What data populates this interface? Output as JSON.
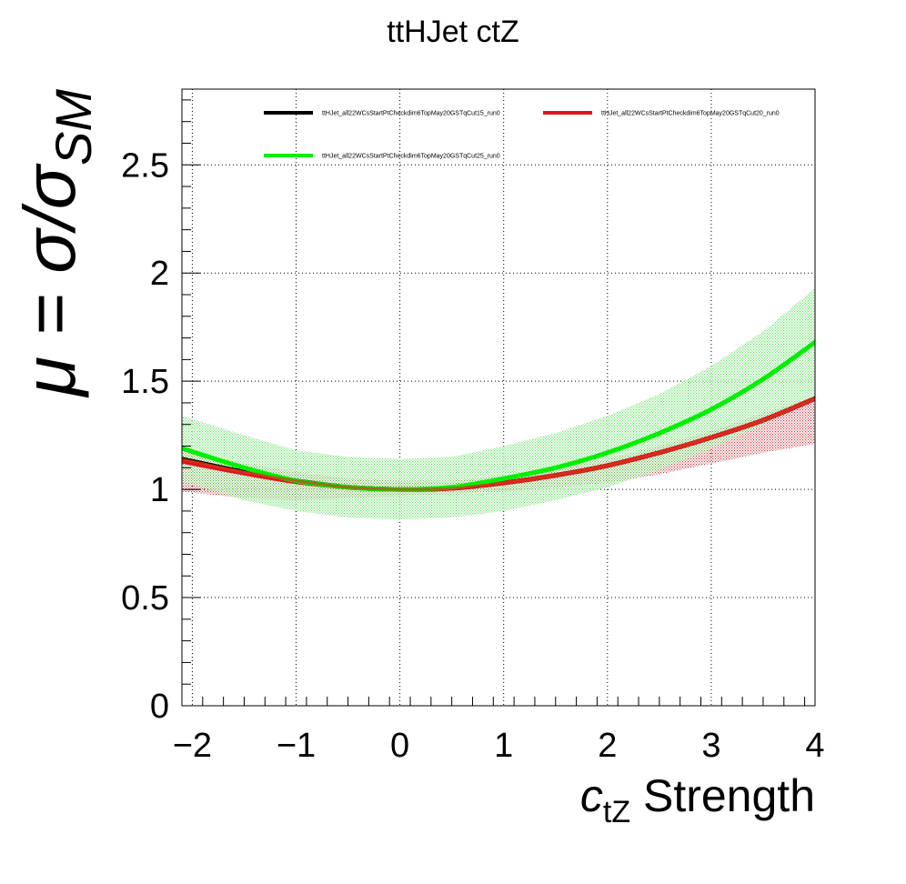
{
  "chart_data": {
    "type": "line",
    "title": "ttHJet ctZ",
    "xlabel": {
      "main": "c",
      "sub": "tZ",
      "suffix": " Strength"
    },
    "ylabel": {
      "prefix": "μ = σ/σ",
      "sub": "SM"
    },
    "xlim": [
      -2.1,
      4.0
    ],
    "ylim": [
      0,
      2.85
    ],
    "xticks": [
      -2,
      -1,
      0,
      1,
      2,
      3,
      4
    ],
    "xtick_labels": [
      "−2",
      "−1",
      "0",
      "1",
      "2",
      "3",
      "4"
    ],
    "yticks": [
      0,
      0.5,
      1,
      1.5,
      2,
      2.5
    ],
    "ytick_labels": [
      "0",
      "0.5",
      "1",
      "1.5",
      "2",
      "2.5"
    ],
    "grid": true,
    "legend_position": "top",
    "series": [
      {
        "name": "ttHJet_all22WCsStartPtCheckdim6TopMay20GSTqCut15_run0",
        "color": "#000000",
        "x": [
          -2.1,
          -1.5,
          -1,
          -0.5,
          0,
          0.5,
          1,
          1.5,
          2,
          2.5,
          3,
          3.5,
          4
        ],
        "y": [
          1.14,
          1.08,
          1.04,
          1.01,
          1.0,
          1.005,
          1.03,
          1.065,
          1.11,
          1.17,
          1.24,
          1.32,
          1.42
        ],
        "band_low": null,
        "band_high": null
      },
      {
        "name": "ttHJet_all22WCsStartPtCheckdim6TopMay20GSTqCut20_run0",
        "color": "#e0141e",
        "x": [
          -2.1,
          -1.5,
          -1,
          -0.5,
          0,
          0.5,
          1,
          1.5,
          2,
          2.5,
          3,
          3.5,
          4
        ],
        "y": [
          1.13,
          1.075,
          1.035,
          1.01,
          1.0,
          1.005,
          1.03,
          1.065,
          1.11,
          1.17,
          1.24,
          1.32,
          1.42
        ],
        "band_low": [
          0.99,
          0.96,
          0.95,
          0.96,
          0.97,
          0.98,
          0.99,
          1.01,
          1.03,
          1.07,
          1.12,
          1.17,
          1.21
        ],
        "band_high": [
          1.18,
          1.12,
          1.08,
          1.05,
          1.04,
          1.04,
          1.06,
          1.09,
          1.14,
          1.2,
          1.27,
          1.35,
          1.43
        ]
      },
      {
        "name": "ttHJet_all22WCsStartPtCheckdim6TopMay20GSTqCut25_run0",
        "color": "#00f000",
        "x": [
          -2.1,
          -1.5,
          -1,
          -0.5,
          0,
          0.5,
          1,
          1.5,
          2,
          2.5,
          3,
          3.5,
          4
        ],
        "y": [
          1.19,
          1.1,
          1.04,
          1.01,
          1.0,
          1.01,
          1.05,
          1.1,
          1.17,
          1.26,
          1.37,
          1.51,
          1.68
        ],
        "band_low": [
          1.04,
          0.95,
          0.9,
          0.87,
          0.86,
          0.87,
          0.9,
          0.95,
          1.01,
          1.09,
          1.19,
          1.3,
          1.43
        ],
        "band_high": [
          1.34,
          1.25,
          1.18,
          1.15,
          1.14,
          1.15,
          1.2,
          1.26,
          1.34,
          1.44,
          1.57,
          1.73,
          1.93
        ]
      }
    ]
  }
}
